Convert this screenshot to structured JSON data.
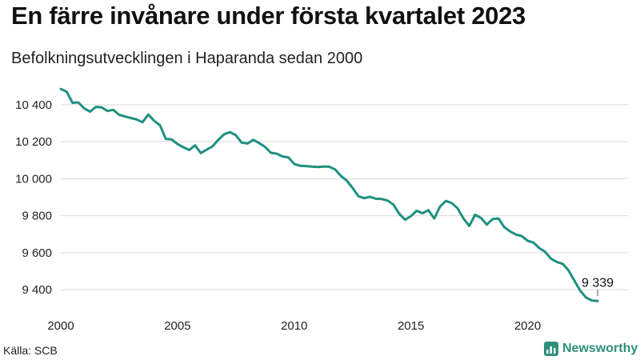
{
  "header": {
    "title": "En färre invånare under första kvartalet 2023",
    "subtitle": "Befolkningsutvecklingen i Haparanda sedan 2000"
  },
  "footer": {
    "source": "Källa: SCB",
    "brand": "Newsworthy"
  },
  "colors": {
    "line": "#1f8f80",
    "grid": "#d9d9d9",
    "brand": "#2f8f7d"
  },
  "chart_data": {
    "type": "line",
    "title": "En färre invånare under första kvartalet 2023",
    "subtitle": "Befolkningsutvecklingen i Haparanda sedan 2000",
    "xlabel": "",
    "ylabel": "",
    "xlim": [
      2000,
      2024.3
    ],
    "ylim": [
      9310,
      10490
    ],
    "grid": true,
    "x_ticks": [
      2000,
      2005,
      2010,
      2015,
      2020
    ],
    "x_tick_labels": [
      "2000",
      "2005",
      "2010",
      "2015",
      "2020"
    ],
    "y_ticks": [
      9400,
      9600,
      9800,
      10000,
      10200,
      10400
    ],
    "y_tick_labels": [
      "9 400",
      "9 600",
      "9 800",
      "10 000",
      "10 200",
      "10 400"
    ],
    "annotation": {
      "x": 2023.0,
      "y": 9339,
      "label": "9 339"
    },
    "series": [
      {
        "x": [
          2000.0,
          2000.25,
          2000.5,
          2000.75,
          2001.0,
          2001.25,
          2001.5,
          2001.75,
          2002.0,
          2002.25,
          2002.5,
          2002.75,
          2003.0,
          2003.25,
          2003.5,
          2003.75,
          2004.0,
          2004.25,
          2004.5,
          2004.75,
          2005.0,
          2005.25,
          2005.5,
          2005.75,
          2006.0,
          2006.25,
          2006.5,
          2006.75,
          2007.0,
          2007.25,
          2007.5,
          2007.75,
          2008.0,
          2008.25,
          2008.5,
          2008.75,
          2009.0,
          2009.25,
          2009.5,
          2009.75,
          2010.0,
          2010.25,
          2010.5,
          2010.75,
          2011.0,
          2011.25,
          2011.5,
          2011.75,
          2012.0,
          2012.25,
          2012.5,
          2012.75,
          2013.0,
          2013.25,
          2013.5,
          2013.75,
          2014.0,
          2014.25,
          2014.5,
          2014.75,
          2015.0,
          2015.25,
          2015.5,
          2015.75,
          2016.0,
          2016.25,
          2016.5,
          2016.75,
          2017.0,
          2017.25,
          2017.5,
          2017.75,
          2018.0,
          2018.25,
          2018.5,
          2018.75,
          2019.0,
          2019.25,
          2019.5,
          2019.75,
          2020.0,
          2020.25,
          2020.5,
          2020.75,
          2021.0,
          2021.25,
          2021.5,
          2021.75,
          2022.0,
          2022.25,
          2022.5,
          2022.75,
          2023.0
        ],
        "values": [
          10485,
          10470,
          10410,
          10412,
          10380,
          10362,
          10388,
          10385,
          10366,
          10372,
          10345,
          10336,
          10328,
          10320,
          10305,
          10347,
          10313,
          10288,
          10215,
          10212,
          10187,
          10170,
          10155,
          10180,
          10138,
          10157,
          10175,
          10210,
          10240,
          10252,
          10235,
          10195,
          10190,
          10210,
          10192,
          10172,
          10140,
          10135,
          10120,
          10115,
          10080,
          10070,
          10068,
          10065,
          10063,
          10065,
          10065,
          10050,
          10015,
          9990,
          9950,
          9905,
          9895,
          9902,
          9892,
          9890,
          9882,
          9860,
          9810,
          9778,
          9798,
          9827,
          9813,
          9830,
          9785,
          9850,
          9880,
          9868,
          9840,
          9785,
          9745,
          9805,
          9788,
          9752,
          9782,
          9785,
          9738,
          9715,
          9698,
          9690,
          9665,
          9655,
          9625,
          9605,
          9568,
          9550,
          9540,
          9505,
          9450,
          9395,
          9358,
          9342,
          9339
        ]
      }
    ]
  }
}
